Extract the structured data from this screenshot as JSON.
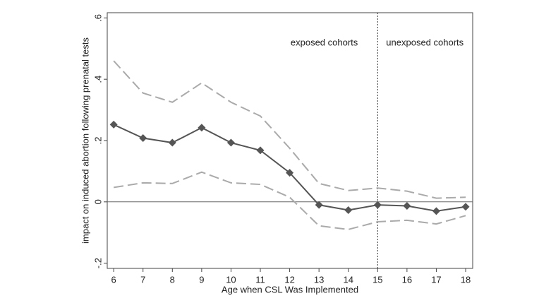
{
  "chart_data": {
    "type": "line",
    "x_label": "Age when CSL Was Implemented",
    "y_label": "impact on induced abortion following prenatal tests",
    "x": [
      6,
      7,
      8,
      9,
      10,
      11,
      12,
      13,
      14,
      15,
      16,
      17,
      18
    ],
    "xlim": [
      5.78,
      18.24
    ],
    "xticks": [
      6,
      7,
      8,
      9,
      10,
      11,
      12,
      13,
      14,
      15,
      16,
      17,
      18
    ],
    "ylim": [
      -0.217,
      0.617
    ],
    "yticks": [
      {
        "value": -0.2,
        "label": "-.2"
      },
      0,
      {
        "value": 0.2,
        "label": ".2"
      },
      {
        "value": 0.4,
        "label": ".4"
      },
      {
        "value": 0.6,
        "label": ".6"
      }
    ],
    "series": [
      {
        "color": "#aaaaaa",
        "dashed": true,
        "markers": false,
        "values": [
          0.46,
          0.355,
          0.325,
          0.388,
          0.325,
          0.28,
          0.175,
          0.06,
          0.037,
          0.045,
          0.035,
          0.012,
          0.015
        ]
      },
      {
        "color": "#aaaaaa",
        "dashed": true,
        "markers": false,
        "values": [
          0.047,
          0.062,
          0.06,
          0.097,
          0.062,
          0.057,
          0.015,
          -0.078,
          -0.09,
          -0.065,
          -0.06,
          -0.072,
          -0.045
        ]
      },
      {
        "color": "#555555",
        "dashed": false,
        "markers": true,
        "values": [
          0.252,
          0.208,
          0.193,
          0.242,
          0.193,
          0.168,
          0.095,
          -0.01,
          -0.027,
          -0.01,
          -0.013,
          -0.03,
          -0.016
        ]
      }
    ],
    "hline": 0,
    "vline": 15,
    "annotations": [
      "exposed cohorts",
      "unexposed cohorts"
    ]
  }
}
